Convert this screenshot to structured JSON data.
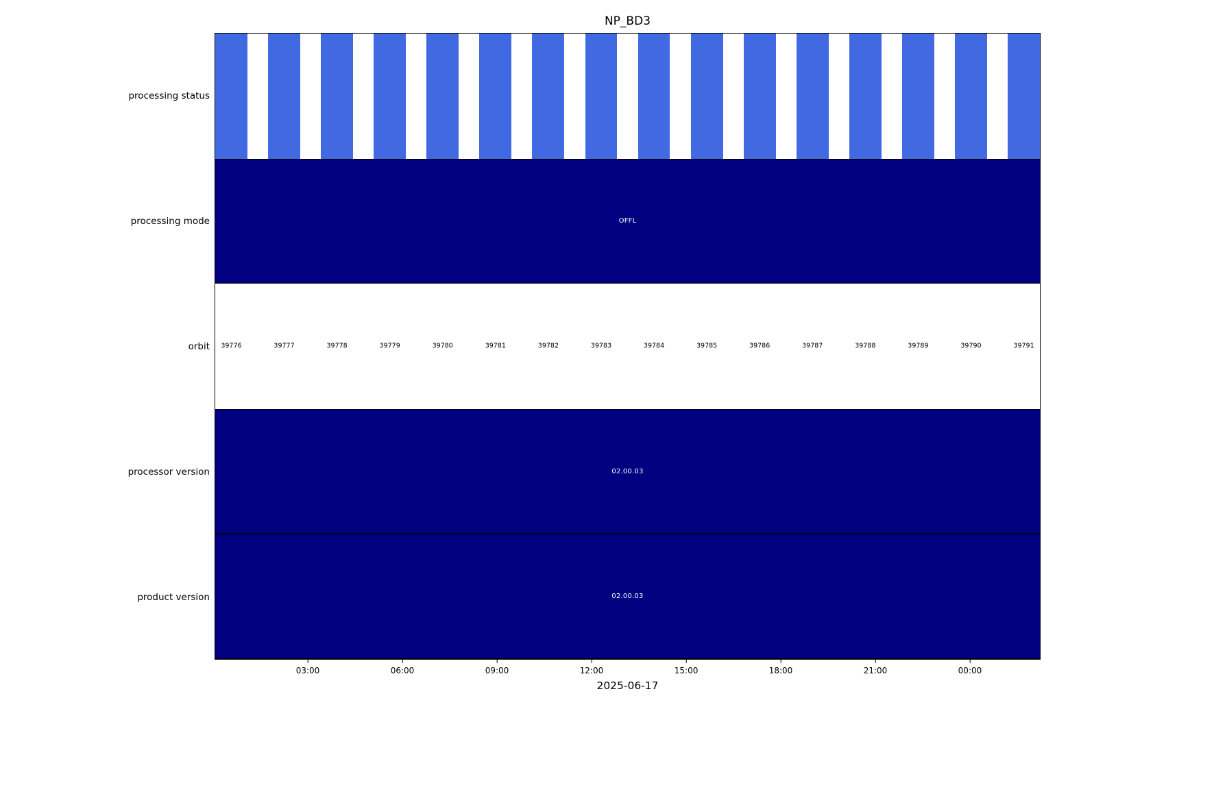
{
  "colors": {
    "bar_blue": "#4169e1",
    "navy": "#000080",
    "value_text": "#ffffff"
  },
  "chart_data": {
    "type": "bar",
    "title": "NP_BD3",
    "xlabel": "2025-06-17",
    "legend": "none",
    "grid": false,
    "x_axis": {
      "ticks": [
        {
          "label": "03:00",
          "pct": 11.29
        },
        {
          "label": "06:00",
          "pct": 22.74
        },
        {
          "label": "09:00",
          "pct": 34.19
        },
        {
          "label": "12:00",
          "pct": 45.64
        },
        {
          "label": "15:00",
          "pct": 57.1
        },
        {
          "label": "18:00",
          "pct": 68.55
        },
        {
          "label": "21:00",
          "pct": 80.0
        },
        {
          "label": "00:00",
          "pct": 91.45
        }
      ]
    },
    "rows": [
      {
        "label": "processing status",
        "type": "bars",
        "bar_count": 16,
        "bar_width_pct": 3.9,
        "bar_color": "#4169e1"
      },
      {
        "label": "processing mode",
        "type": "solid",
        "value": "OFFL",
        "color": "#000080"
      },
      {
        "label": "orbit",
        "type": "labels",
        "values": [
          39776,
          39777,
          39778,
          39779,
          39780,
          39781,
          39782,
          39783,
          39784,
          39785,
          39786,
          39787,
          39788,
          39789,
          39790,
          39791
        ]
      },
      {
        "label": "processor version",
        "type": "solid",
        "value": "02.00.03",
        "color": "#000080"
      },
      {
        "label": "product version",
        "type": "solid",
        "value": "02.00.03",
        "color": "#000080"
      }
    ]
  }
}
